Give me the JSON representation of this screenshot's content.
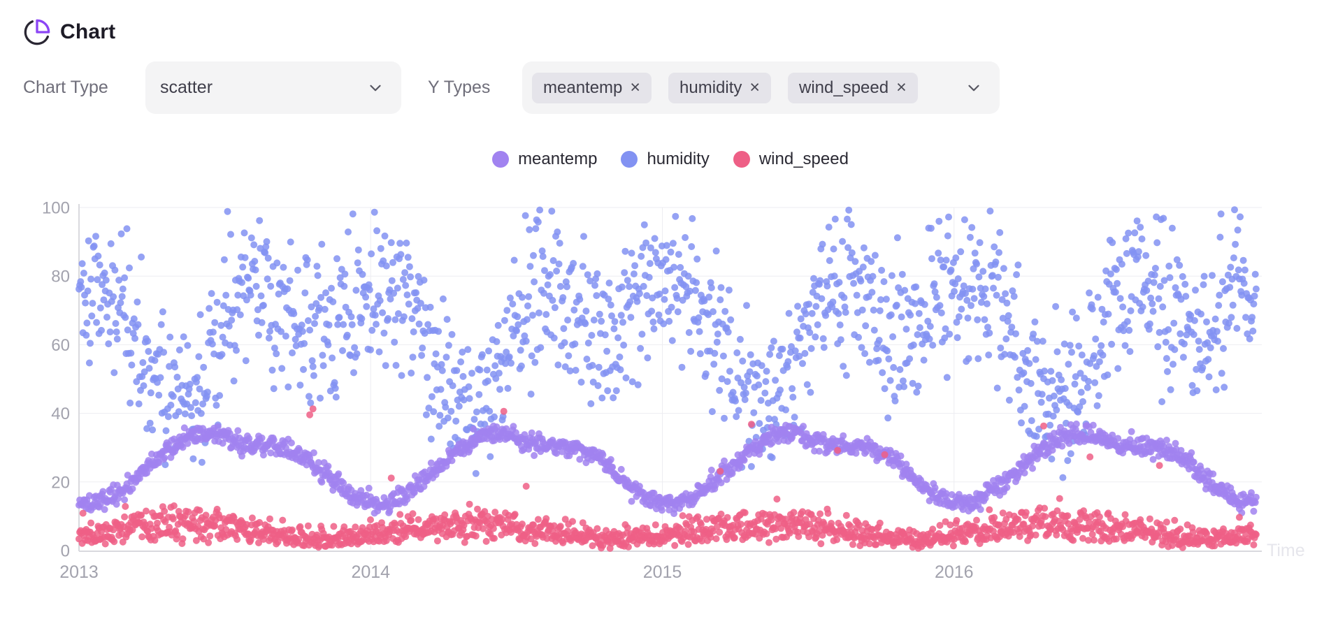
{
  "header": {
    "title": "Chart"
  },
  "controls": {
    "chart_type_label": "Chart Type",
    "chart_type_value": "scatter",
    "y_types_label": "Y Types",
    "y_type_tags": [
      "meantemp",
      "humidity",
      "wind_speed"
    ],
    "remove_glyph": "×"
  },
  "legend": {
    "items": [
      {
        "label": "meantemp",
        "color": "#a183f0"
      },
      {
        "label": "humidity",
        "color": "#8292f2"
      },
      {
        "label": "wind_speed",
        "color": "#ee5f86"
      }
    ]
  },
  "chart_data": {
    "type": "scatter",
    "title": "",
    "xlabel": "Time",
    "ylabel": "",
    "x_tick_years": [
      2013,
      2014,
      2015,
      2016
    ],
    "x_range_years": [
      2013,
      2017.04
    ],
    "y_ticks": [
      0,
      20,
      40,
      60,
      80,
      100
    ],
    "ylim": [
      0,
      100
    ],
    "grid": true,
    "legend_position": "top-center",
    "sampling": "daily",
    "points_per_series": 1475,
    "seed": 1337,
    "draw_order": [
      "humidity",
      "meantemp",
      "wind_speed"
    ],
    "series": [
      {
        "name": "meantemp",
        "color": "#a183f0",
        "opacity": 0.85,
        "dot_radius": 5,
        "monthly_means": [
          13.5,
          16.5,
          22.5,
          28.5,
          33.5,
          34.5,
          31.5,
          30.5,
          30,
          26.5,
          20,
          14.5
        ],
        "noise_sd": 1.4,
        "min": 10.5,
        "max": 38.5,
        "distribution": "normal"
      },
      {
        "name": "humidity",
        "color": "#8292f2",
        "opacity": 0.85,
        "dot_radius": 5,
        "monthly_means": [
          80,
          73,
          60,
          46,
          44,
          53,
          74,
          80,
          73,
          62,
          67,
          79
        ],
        "noise_sd": 11,
        "min": 17,
        "max": 99.5,
        "distribution": "normal"
      },
      {
        "name": "wind_speed",
        "color": "#ee5f86",
        "opacity": 0.85,
        "dot_radius": 5,
        "monthly_means": [
          5.5,
          7,
          8,
          8.5,
          8.5,
          8,
          7,
          6,
          5,
          3.2,
          3.4,
          4.4
        ],
        "noise_sd": 2.2,
        "min": 0.3,
        "max": 42,
        "distribution": "positive-skew",
        "outlier_rate": 0.005,
        "outlier_range": [
          18,
          42
        ]
      }
    ]
  },
  "colors": {
    "accent": "#8b45f5",
    "icon_stroke": "#2a2733",
    "title_text": "#1d1b26",
    "muted_label": "#6f6e7a",
    "control_bg": "#f4f4f5",
    "tag_bg": "#e5e4ea",
    "control_text": "#3f3e4a",
    "chevron": "#565661",
    "axis_line": "#d9d9de",
    "grid_line": "#ededf1",
    "tick_text": "#a2a2ad",
    "time_label": "#e6e6ec",
    "legend_text": "#2a2933"
  }
}
